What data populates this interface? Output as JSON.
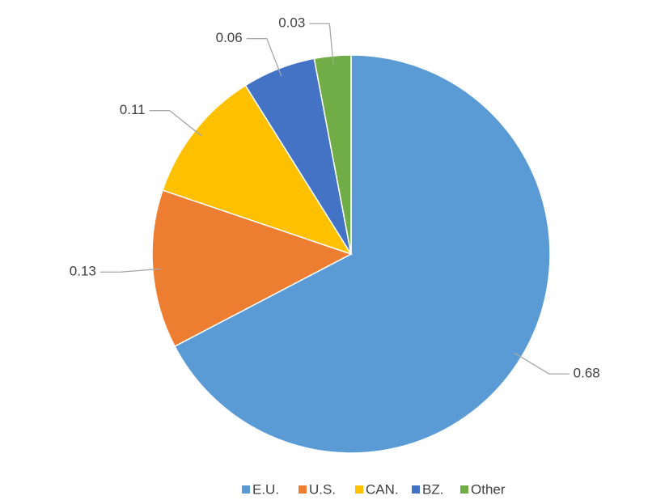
{
  "chart_data": {
    "type": "pie",
    "categories": [
      "E.U.",
      "U.S.",
      "CAN.",
      "BZ.",
      "Other"
    ],
    "values": [
      0.68,
      0.13,
      0.11,
      0.06,
      0.03
    ],
    "colors": [
      "#5b9bd5",
      "#ed7d31",
      "#ffc000",
      "#4472c4",
      "#70ad47"
    ],
    "legend": "bottom"
  }
}
